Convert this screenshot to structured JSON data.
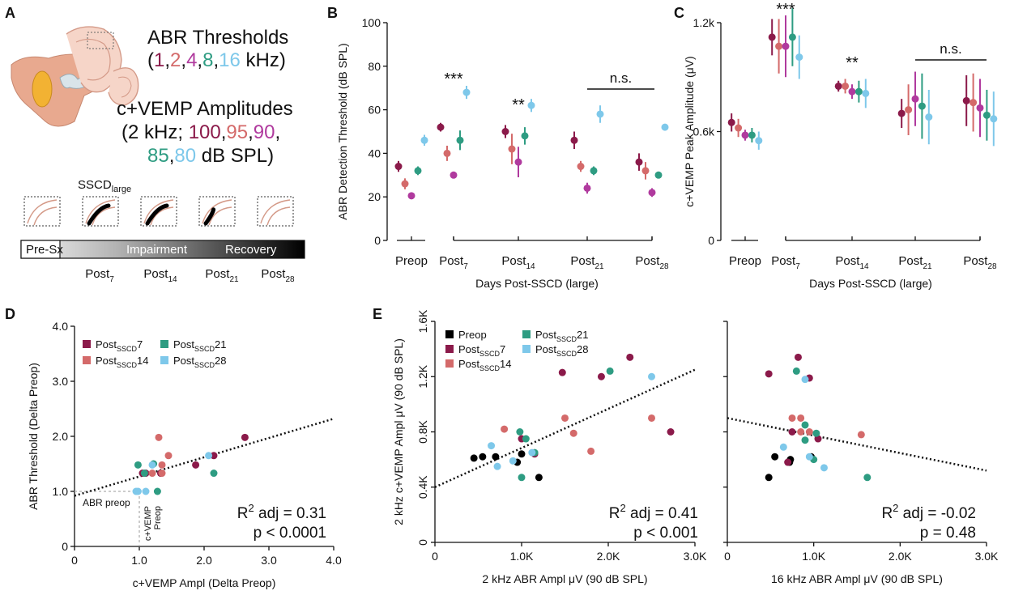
{
  "colors": {
    "c1": "#8B1A4A",
    "c2": "#D46A6A",
    "c4": "#B03A9E",
    "c8": "#2E9C82",
    "c16": "#7EC8EA",
    "preop": "#000000",
    "post7": "#8B1A4A",
    "post14": "#D46A6A",
    "post21": "#2E9C82",
    "post28": "#7EC8EA",
    "fit": "#111111",
    "guide": "#BBBBBB"
  },
  "panelA": {
    "letter": "A",
    "abr_title": "ABR Thresholds",
    "abr_open": "(",
    "abr_freqs": [
      "1",
      "2",
      "4",
      "8",
      "16"
    ],
    "abr_comma": ",",
    "abr_unit": " kHz)",
    "vemp_title": "c+VEMP Amplitudes",
    "vemp_line2_prefix": "(2 kHz; ",
    "vemp_levels_a": [
      "100",
      "95",
      "90"
    ],
    "vemp_levels_b": [
      "85",
      "80"
    ],
    "vemp_unit": " dB SPL)",
    "sscd_label": "SSCD",
    "sscd_sub": "large",
    "bar_labels": [
      "Pre-Sx",
      "Impairment",
      "Recovery"
    ],
    "timepoints": [
      {
        "base": "Post",
        "sub": "7"
      },
      {
        "base": "Post",
        "sub": "14"
      },
      {
        "base": "Post",
        "sub": "21"
      },
      {
        "base": "Post",
        "sub": "28"
      }
    ]
  },
  "chart_data": [
    {
      "panel": "B",
      "type": "scatter",
      "title": "",
      "ylabel": "ABR Detection Threshold (dB SPL)",
      "xlabel": "Days Post-SSCD (large)",
      "ylim": [
        0,
        100
      ],
      "yticks": [
        "0",
        "20",
        "40",
        "60",
        "80",
        "100"
      ],
      "groups": [
        {
          "base": "Preop",
          "sub": ""
        },
        {
          "base": "Post",
          "sub": "7"
        },
        {
          "base": "Post",
          "sub": "14"
        },
        {
          "base": "Post",
          "sub": "21"
        },
        {
          "base": "Post",
          "sub": "28"
        }
      ],
      "series": [
        {
          "name": "1 kHz",
          "color_key": "c1",
          "values": [
            34,
            52,
            50,
            46,
            36
          ],
          "errors": [
            2.5,
            2,
            3,
            4,
            4
          ]
        },
        {
          "name": "2 kHz",
          "color_key": "c2",
          "values": [
            26,
            40,
            42,
            34,
            32
          ],
          "errors": [
            2.5,
            3.5,
            7,
            2.5,
            4
          ]
        },
        {
          "name": "4 kHz",
          "color_key": "c4",
          "values": [
            20.5,
            30,
            36,
            24,
            22
          ],
          "errors": [
            1.5,
            1,
            7,
            2.5,
            2
          ]
        },
        {
          "name": "8 kHz",
          "color_key": "c8",
          "values": [
            32,
            46,
            48,
            32,
            30
          ],
          "errors": [
            2,
            4.5,
            4,
            2,
            1.5
          ]
        },
        {
          "name": "16 kHz",
          "color_key": "c16",
          "values": [
            46,
            68,
            62,
            58,
            52
          ],
          "errors": [
            2.5,
            3,
            3,
            4,
            1.5
          ]
        }
      ],
      "annotations": [
        {
          "text": "***",
          "group": 1
        },
        {
          "text": "**",
          "group": 2
        },
        {
          "text": "n.s.",
          "group": 3
        }
      ]
    },
    {
      "panel": "C",
      "type": "scatter",
      "title": "",
      "ylabel": "c+VEMP Peak Amplitude (μV)",
      "xlabel": "Days Post-SSCD (large)",
      "ylim": [
        0,
        1.2
      ],
      "yticks": [
        "0",
        "0.6k",
        "1.2k"
      ],
      "groups": [
        {
          "base": "Preop",
          "sub": ""
        },
        {
          "base": "Post",
          "sub": "7"
        },
        {
          "base": "Post",
          "sub": "14"
        },
        {
          "base": "Post",
          "sub": "21"
        },
        {
          "base": "Post",
          "sub": "28"
        }
      ],
      "series": [
        {
          "name": "100 dB",
          "color_key": "c1",
          "values": [
            0.65,
            1.12,
            0.85,
            0.7,
            0.77
          ],
          "errors": [
            0.05,
            0.1,
            0.03,
            0.08,
            0.14
          ]
        },
        {
          "name": "95 dB",
          "color_key": "c2",
          "values": [
            0.62,
            1.07,
            0.85,
            0.72,
            0.76
          ],
          "errors": [
            0.05,
            0.15,
            0.04,
            0.14,
            0.16
          ]
        },
        {
          "name": "90 dB",
          "color_key": "c4",
          "values": [
            0.58,
            1.07,
            0.82,
            0.78,
            0.73
          ],
          "errors": [
            0.03,
            0.17,
            0.04,
            0.15,
            0.16
          ]
        },
        {
          "name": "85 dB",
          "color_key": "c8",
          "values": [
            0.58,
            1.12,
            0.82,
            0.74,
            0.69
          ],
          "errors": [
            0.04,
            0.16,
            0.06,
            0.18,
            0.14
          ]
        },
        {
          "name": "80 dB",
          "color_key": "c16",
          "values": [
            0.55,
            1.01,
            0.81,
            0.68,
            0.67
          ],
          "errors": [
            0.05,
            0.12,
            0.08,
            0.15,
            0.15
          ]
        }
      ],
      "annotations": [
        {
          "text": "***",
          "group": 1
        },
        {
          "text": "**",
          "group": 2
        },
        {
          "text": "n.s.",
          "group": 3
        }
      ]
    },
    {
      "panel": "D",
      "type": "scatter",
      "title": "",
      "ylabel": "ABR Threshold (Delta Preop)",
      "xlabel": "c+VEMP Ampl (Delta Preop)",
      "xlim": [
        0,
        4
      ],
      "ylim": [
        0,
        4
      ],
      "xticks": [
        "0",
        "1.0",
        "2.0",
        "3.0",
        "4.0"
      ],
      "yticks": [
        "0",
        "1.0",
        "2.0",
        "3.0",
        "4.0"
      ],
      "legend": [
        {
          "base": "Post",
          "sub": "SSCD",
          "tail": "7",
          "color_key": "post7"
        },
        {
          "base": "Post",
          "sub": "SSCD",
          "tail": "14",
          "color_key": "post14"
        },
        {
          "base": "Post",
          "sub": "SSCD",
          "tail": "21",
          "color_key": "post21"
        },
        {
          "base": "Post",
          "sub": "SSCD",
          "tail": "28",
          "color_key": "post28"
        }
      ],
      "points": [
        {
          "g": "post7",
          "x": 1.05,
          "y": 1.33
        },
        {
          "g": "post7",
          "x": 1.1,
          "y": 1.33
        },
        {
          "g": "post7",
          "x": 1.33,
          "y": 1.33
        },
        {
          "g": "post7",
          "x": 1.87,
          "y": 1.48
        },
        {
          "g": "post7",
          "x": 2.15,
          "y": 1.65
        },
        {
          "g": "post7",
          "x": 2.63,
          "y": 1.98
        },
        {
          "g": "post14",
          "x": 1.3,
          "y": 1.98
        },
        {
          "g": "post14",
          "x": 1.35,
          "y": 1.48
        },
        {
          "g": "post14",
          "x": 1.45,
          "y": 1.65
        },
        {
          "g": "post14",
          "x": 1.35,
          "y": 1.33
        },
        {
          "g": "post14",
          "x": 1.2,
          "y": 1.33
        },
        {
          "g": "post21",
          "x": 0.98,
          "y": 1.48
        },
        {
          "g": "post21",
          "x": 1.08,
          "y": 1.33
        },
        {
          "g": "post21",
          "x": 1.28,
          "y": 1.0
        },
        {
          "g": "post21",
          "x": 2.15,
          "y": 1.33
        },
        {
          "g": "post21",
          "x": 1.22,
          "y": 1.5
        },
        {
          "g": "post28",
          "x": 0.95,
          "y": 1.0
        },
        {
          "g": "post28",
          "x": 1.2,
          "y": 1.48
        },
        {
          "g": "post28",
          "x": 1.1,
          "y": 1.0
        },
        {
          "g": "post28",
          "x": 2.07,
          "y": 1.65
        },
        {
          "g": "post28",
          "x": 0.98,
          "y": 1.0
        }
      ],
      "fit": {
        "x1": 0,
        "y1": 0.92,
        "x2": 4.0,
        "y2": 2.32
      },
      "guide_label_x": "ABR preop",
      "guide_label_y": [
        "c+VEMP",
        "Preop"
      ],
      "r2_prefix": "R",
      "r2_sup": "2",
      "r2_text": " adj = 0.31",
      "p_text": "p < 0.0001"
    },
    {
      "panel": "E",
      "type": "scatter",
      "ylabel": "2 kHz c+VEMP Ampl μV (90 dB SPL)",
      "legend": [
        {
          "base": "Preop",
          "sub": "",
          "tail": "",
          "color_key": "preop"
        },
        {
          "base": "Post",
          "sub": "SSCD",
          "tail": "7",
          "color_key": "post7"
        },
        {
          "base": "Post",
          "sub": "SSCD",
          "tail": "14",
          "color_key": "post14"
        },
        {
          "base": "Post",
          "sub": "SSCD",
          "tail": "21",
          "color_key": "post21"
        },
        {
          "base": "Post",
          "sub": "SSCD",
          "tail": "28",
          "color_key": "post28"
        }
      ],
      "ylim": [
        0,
        1.6
      ],
      "yticks": [
        "0",
        "0.4K",
        "0.8K",
        "1.2K",
        "1.6K"
      ],
      "subplots": [
        {
          "xlabel": "2 kHz ABR Ampl μV (90 dB SPL)",
          "xlim": [
            0,
            3
          ],
          "xticks": [
            "0",
            "1.0K",
            "2.0K",
            "3.0K"
          ],
          "points": [
            {
              "g": "preop",
              "x": 0.45,
              "y": 0.61
            },
            {
              "g": "preop",
              "x": 0.55,
              "y": 0.62
            },
            {
              "g": "preop",
              "x": 0.7,
              "y": 0.62
            },
            {
              "g": "preop",
              "x": 0.95,
              "y": 0.58
            },
            {
              "g": "preop",
              "x": 1.0,
              "y": 0.64
            },
            {
              "g": "preop",
              "x": 1.2,
              "y": 0.47
            },
            {
              "g": "post7",
              "x": 1.47,
              "y": 1.23
            },
            {
              "g": "post7",
              "x": 1.92,
              "y": 1.2
            },
            {
              "g": "post7",
              "x": 2.25,
              "y": 1.34
            },
            {
              "g": "post7",
              "x": 2.72,
              "y": 0.8
            },
            {
              "g": "post7",
              "x": 1.15,
              "y": 0.64
            },
            {
              "g": "post7",
              "x": 1.0,
              "y": 0.75
            },
            {
              "g": "post14",
              "x": 0.8,
              "y": 0.82
            },
            {
              "g": "post14",
              "x": 1.5,
              "y": 0.9
            },
            {
              "g": "post14",
              "x": 1.6,
              "y": 0.79
            },
            {
              "g": "post14",
              "x": 1.8,
              "y": 0.66
            },
            {
              "g": "post14",
              "x": 2.5,
              "y": 0.9
            },
            {
              "g": "post21",
              "x": 0.98,
              "y": 0.8
            },
            {
              "g": "post21",
              "x": 1.05,
              "y": 0.75
            },
            {
              "g": "post21",
              "x": 1.15,
              "y": 0.65
            },
            {
              "g": "post21",
              "x": 2.02,
              "y": 1.24
            },
            {
              "g": "post21",
              "x": 1.0,
              "y": 0.47
            },
            {
              "g": "post28",
              "x": 0.65,
              "y": 0.7
            },
            {
              "g": "post28",
              "x": 0.72,
              "y": 0.55
            },
            {
              "g": "post28",
              "x": 0.9,
              "y": 0.59
            },
            {
              "g": "post28",
              "x": 1.12,
              "y": 0.65
            },
            {
              "g": "post28",
              "x": 2.5,
              "y": 1.2
            }
          ],
          "fit": {
            "x1": 0,
            "y1": 0.4,
            "x2": 3.0,
            "y2": 1.25
          },
          "r2_prefix": "R",
          "r2_sup": "2",
          "r2_text": " adj = 0.41",
          "p_text": "p < 0.001"
        },
        {
          "xlabel": "16 kHz ABR Ampl μV (90 dB SPL)",
          "xlim": [
            0,
            3
          ],
          "xticks": [
            "0",
            "1.0K",
            "2.0K",
            "3.0K"
          ],
          "points": [
            {
              "g": "preop",
              "x": 0.48,
              "y": 0.47
            },
            {
              "g": "preop",
              "x": 0.55,
              "y": 0.62
            },
            {
              "g": "preop",
              "x": 0.72,
              "y": 0.58
            },
            {
              "g": "preop",
              "x": 0.73,
              "y": 0.6
            },
            {
              "g": "preop",
              "x": 0.97,
              "y": 0.62
            },
            {
              "g": "post7",
              "x": 0.48,
              "y": 1.22
            },
            {
              "g": "post7",
              "x": 0.82,
              "y": 1.34
            },
            {
              "g": "post7",
              "x": 0.95,
              "y": 1.19
            },
            {
              "g": "post7",
              "x": 1.05,
              "y": 0.75
            },
            {
              "g": "post7",
              "x": 0.75,
              "y": 0.8
            },
            {
              "g": "post7",
              "x": 0.7,
              "y": 0.58
            },
            {
              "g": "post14",
              "x": 0.75,
              "y": 0.9
            },
            {
              "g": "post14",
              "x": 0.85,
              "y": 0.9
            },
            {
              "g": "post14",
              "x": 0.95,
              "y": 0.8
            },
            {
              "g": "post14",
              "x": 1.55,
              "y": 0.78
            },
            {
              "g": "post14",
              "x": 0.85,
              "y": 0.8
            },
            {
              "g": "post21",
              "x": 0.8,
              "y": 1.24
            },
            {
              "g": "post21",
              "x": 0.9,
              "y": 0.74
            },
            {
              "g": "post21",
              "x": 0.9,
              "y": 0.85
            },
            {
              "g": "post21",
              "x": 1.0,
              "y": 0.6
            },
            {
              "g": "post21",
              "x": 1.03,
              "y": 0.79
            },
            {
              "g": "post21",
              "x": 1.62,
              "y": 0.47
            },
            {
              "g": "post28",
              "x": 0.65,
              "y": 0.69
            },
            {
              "g": "post28",
              "x": 0.9,
              "y": 1.18
            },
            {
              "g": "post28",
              "x": 0.95,
              "y": 0.62
            },
            {
              "g": "post28",
              "x": 1.12,
              "y": 0.54
            }
          ],
          "fit": {
            "x1": 0,
            "y1": 0.9,
            "x2": 3.0,
            "y2": 0.52
          },
          "r2_prefix": "R",
          "r2_sup": "2",
          "r2_text": " adj = -0.02",
          "p_text": "p = 0.48"
        }
      ]
    }
  ]
}
